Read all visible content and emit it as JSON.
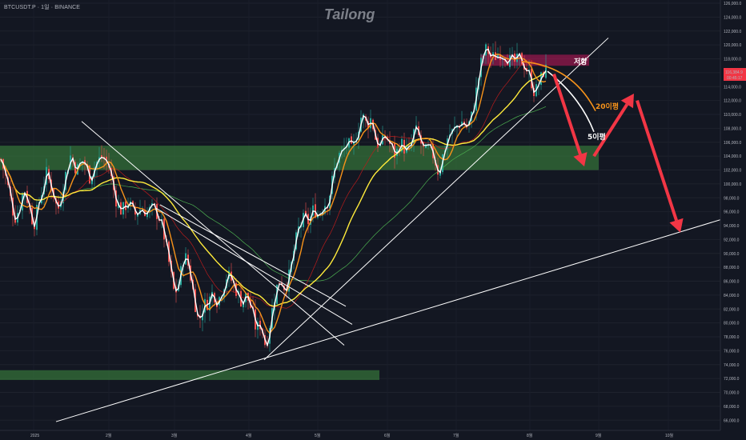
{
  "header": {
    "symbol": "BTCUSDT.P · 1일 · BINANCE",
    "watermark": "Tailong"
  },
  "price_badge": {
    "value": "116,384.9",
    "sub": "00:45:17",
    "color": "#f23645"
  },
  "annotations": {
    "resistance": "저항",
    "ma20": "20이평",
    "ma5": "5이평"
  },
  "colors": {
    "up": "#26a69a",
    "down": "#ef5350",
    "ma5": "#ffffff",
    "ma20": "#f7931a",
    "ma100": "#ffeb3b",
    "ma60": "#b71c1c",
    "ma200": "#4caf50",
    "zone_green": "#3f8f3f",
    "zone_red": "#c2185b",
    "arrow": "#f23645"
  },
  "chart_data": {
    "type": "candlestick",
    "ylim": [
      65000,
      126000
    ],
    "y_ticks": [
      66000,
      68000,
      70000,
      72000,
      74000,
      76000,
      78000,
      80000,
      82000,
      84000,
      86000,
      88000,
      90000,
      92000,
      94000,
      96000,
      98000,
      100000,
      102000,
      104000,
      106000,
      108000,
      110000,
      112000,
      114000,
      116000,
      118000,
      120000,
      122000,
      124000,
      126000
    ],
    "x_labels": [
      "2025",
      "2월",
      "3월",
      "4월",
      "5월",
      "6월",
      "7월",
      "8월",
      "9월",
      "10월"
    ],
    "close_path": [
      [
        0,
        104000
      ],
      [
        6,
        101500
      ],
      [
        12,
        98500
      ],
      [
        18,
        95000
      ],
      [
        24,
        96500
      ],
      [
        30,
        99500
      ],
      [
        36,
        97000
      ],
      [
        42,
        94000
      ],
      [
        50,
        98000
      ],
      [
        58,
        101500
      ],
      [
        66,
        99000
      ],
      [
        72,
        96000
      ],
      [
        80,
        100500
      ],
      [
        88,
        104000
      ],
      [
        96,
        102000
      ],
      [
        104,
        103500
      ],
      [
        112,
        101000
      ],
      [
        120,
        103000
      ],
      [
        128,
        104000
      ],
      [
        136,
        102500
      ],
      [
        144,
        98000
      ],
      [
        152,
        96000
      ],
      [
        160,
        97500
      ],
      [
        168,
        95500
      ],
      [
        176,
        96500
      ],
      [
        184,
        96000
      ],
      [
        192,
        96500
      ],
      [
        200,
        95000
      ],
      [
        206,
        92000
      ],
      [
        212,
        88000
      ],
      [
        218,
        84000
      ],
      [
        224,
        86000
      ],
      [
        230,
        90000
      ],
      [
        236,
        88000
      ],
      [
        242,
        84000
      ],
      [
        248,
        80000
      ],
      [
        254,
        82500
      ],
      [
        260,
        83000
      ],
      [
        266,
        84500
      ],
      [
        272,
        83000
      ],
      [
        278,
        85000
      ],
      [
        284,
        87000
      ],
      [
        290,
        86000
      ],
      [
        296,
        84500
      ],
      [
        302,
        83000
      ],
      [
        308,
        84000
      ],
      [
        314,
        82000
      ],
      [
        320,
        79000
      ],
      [
        326,
        80000
      ],
      [
        332,
        76500
      ],
      [
        338,
        80500
      ],
      [
        344,
        84500
      ],
      [
        350,
        86500
      ],
      [
        356,
        85000
      ],
      [
        362,
        87000
      ],
      [
        368,
        91000
      ],
      [
        374,
        94000
      ],
      [
        380,
        95000
      ],
      [
        386,
        94500
      ],
      [
        392,
        96500
      ],
      [
        398,
        95500
      ],
      [
        404,
        97000
      ],
      [
        410,
        97500
      ],
      [
        416,
        101000
      ],
      [
        422,
        104000
      ],
      [
        428,
        104500
      ],
      [
        434,
        106000
      ],
      [
        440,
        104500
      ],
      [
        446,
        107500
      ],
      [
        452,
        110000
      ],
      [
        458,
        108500
      ],
      [
        464,
        109500
      ],
      [
        470,
        106000
      ],
      [
        476,
        105500
      ],
      [
        482,
        107000
      ],
      [
        488,
        105500
      ],
      [
        494,
        104000
      ],
      [
        500,
        106000
      ],
      [
        506,
        105000
      ],
      [
        512,
        104500
      ],
      [
        518,
        108000
      ],
      [
        524,
        106500
      ],
      [
        530,
        104500
      ],
      [
        536,
        105000
      ],
      [
        542,
        104000
      ],
      [
        548,
        101500
      ],
      [
        554,
        104500
      ],
      [
        560,
        107000
      ],
      [
        566,
        107500
      ],
      [
        572,
        108500
      ],
      [
        578,
        109000
      ],
      [
        584,
        108000
      ],
      [
        590,
        110000
      ],
      [
        596,
        114000
      ],
      [
        602,
        118000
      ],
      [
        608,
        119500
      ],
      [
        614,
        118000
      ],
      [
        620,
        118500
      ],
      [
        626,
        119000
      ],
      [
        632,
        118500
      ],
      [
        638,
        117500
      ],
      [
        644,
        117500
      ],
      [
        650,
        118000
      ],
      [
        656,
        117000
      ],
      [
        662,
        115500
      ],
      [
        668,
        113000
      ],
      [
        674,
        114500
      ],
      [
        680,
        116500
      ],
      [
        684,
        116400
      ]
    ],
    "zones": [
      {
        "type": "support",
        "x0": 0,
        "x1": 748,
        "y0": 102000,
        "y1": 105500
      },
      {
        "type": "support",
        "x0": 0,
        "x1": 474,
        "y0": 71800,
        "y1": 73200
      },
      {
        "type": "resistance",
        "x0": 600,
        "x1": 736,
        "y0": 117000,
        "y1": 118600
      }
    ],
    "trendlines": [
      {
        "name": "ascending-long",
        "points": [
          [
            70,
            65800
          ],
          [
            910,
            95200
          ]
        ]
      },
      {
        "name": "ascending-short",
        "points": [
          [
            330,
            74700
          ],
          [
            760,
            121000
          ]
        ]
      },
      {
        "name": "descending-a",
        "points": [
          [
            102,
            109000
          ],
          [
            430,
            76800
          ]
        ]
      },
      {
        "name": "descending-b",
        "points": [
          [
            195,
            96500
          ],
          [
            440,
            79800
          ]
        ]
      },
      {
        "name": "descending-c",
        "points": [
          [
            200,
            97000
          ],
          [
            432,
            82400
          ]
        ]
      }
    ]
  }
}
